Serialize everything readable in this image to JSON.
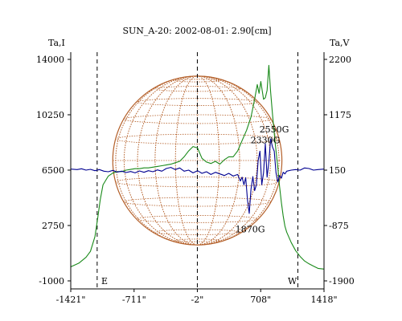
{
  "chart_data": {
    "type": "line",
    "title": "SUN_A-20: 2002-08-01: 2.90[cm]",
    "left_axis": {
      "label": "Ta,I",
      "ticks": [
        14000,
        10250,
        6500,
        2750,
        -1000
      ],
      "tick_labels": [
        "14000",
        "10250",
        "6500",
        "2750",
        "-1000"
      ],
      "range": [
        -1000,
        14000
      ]
    },
    "right_axis": {
      "label": "Ta,V",
      "ticks": [
        2200,
        1175,
        150,
        -875,
        -1900
      ],
      "tick_labels": [
        "2200",
        "1175",
        "150",
        "-875",
        "-1900"
      ],
      "range": [
        -1900,
        2200
      ]
    },
    "x_axis": {
      "ticks": [
        -1421,
        -711,
        -2,
        708,
        1418
      ],
      "tick_labels": [
        "-1421\"",
        "-711\"",
        "-2\"",
        "708\"",
        "1418\""
      ],
      "range": [
        -1421,
        1418
      ]
    },
    "markers": {
      "east_label": "E",
      "west_label": "W"
    },
    "vertical_dashed_lines_x": [
      -1125,
      -2,
      1125
    ],
    "disk": {
      "center_x": -2,
      "radius_arcsec": 948,
      "color": "#b4602a"
    },
    "series": [
      {
        "axis": "left",
        "color": "#1a8a1a",
        "x": [
          -1421,
          -1330,
          -1250,
          -1200,
          -1150,
          -1120,
          -1090,
          -1060,
          -1000,
          -950,
          -900,
          -850,
          -800,
          -750,
          -700,
          -650,
          -600,
          -550,
          -500,
          -450,
          -400,
          -350,
          -300,
          -250,
          -200,
          -150,
          -100,
          -50,
          0,
          50,
          100,
          150,
          200,
          250,
          300,
          350,
          400,
          450,
          500,
          550,
          600,
          640,
          670,
          690,
          710,
          740,
          760,
          780,
          800,
          820,
          840,
          860,
          880,
          900,
          920,
          940,
          960,
          980,
          1000,
          1050,
          1100,
          1150,
          1200,
          1250,
          1300,
          1350,
          1418
        ],
        "y": [
          -50,
          200,
          600,
          1000,
          2000,
          3200,
          4500,
          5500,
          6100,
          6300,
          6400,
          6400,
          6500,
          6550,
          6600,
          6600,
          6650,
          6650,
          6700,
          6750,
          6800,
          6850,
          6900,
          7000,
          7100,
          7400,
          7800,
          8100,
          8000,
          7300,
          7050,
          6950,
          7100,
          6900,
          7200,
          7400,
          7400,
          7800,
          8500,
          9200,
          10100,
          11300,
          12300,
          11700,
          12500,
          11300,
          11400,
          11900,
          13600,
          11800,
          10300,
          9000,
          7800,
          6700,
          5400,
          4300,
          3400,
          2700,
          2300,
          1600,
          1050,
          650,
          350,
          150,
          0,
          -150,
          -200
        ]
      },
      {
        "axis": "right",
        "color": "#000090",
        "x": [
          -1421,
          -1350,
          -1300,
          -1250,
          -1200,
          -1150,
          -1100,
          -1050,
          -1000,
          -950,
          -900,
          -850,
          -800,
          -750,
          -700,
          -650,
          -600,
          -550,
          -500,
          -450,
          -400,
          -350,
          -300,
          -250,
          -200,
          -150,
          -100,
          -50,
          0,
          50,
          100,
          150,
          200,
          250,
          300,
          350,
          400,
          450,
          480,
          500,
          520,
          540,
          560,
          580,
          600,
          620,
          640,
          660,
          680,
          700,
          720,
          740,
          760,
          780,
          800,
          820,
          840,
          860,
          880,
          900,
          920,
          940,
          960,
          980,
          1000,
          1050,
          1100,
          1150,
          1200,
          1250,
          1300,
          1350,
          1418
        ],
        "y": [
          170,
          160,
          175,
          150,
          165,
          140,
          160,
          130,
          120,
          145,
          115,
          130,
          105,
          125,
          100,
          135,
          110,
          140,
          120,
          155,
          130,
          180,
          200,
          160,
          190,
          130,
          150,
          100,
          140,
          90,
          120,
          70,
          110,
          80,
          50,
          90,
          40,
          70,
          -50,
          20,
          -120,
          10,
          -400,
          -650,
          -200,
          30,
          -230,
          -120,
          330,
          500,
          -120,
          100,
          640,
          20,
          300,
          730,
          580,
          500,
          100,
          -70,
          50,
          0,
          110,
          80,
          130,
          150,
          160,
          150,
          190,
          180,
          150,
          160,
          170
        ]
      }
    ],
    "annotations": [
      {
        "text": "2550G",
        "x": 860,
        "y_right": 850
      },
      {
        "text": "2330G",
        "x": 760,
        "y_right": 650
      },
      {
        "text": "1870G",
        "x": 590,
        "y_right": -1000
      }
    ]
  }
}
